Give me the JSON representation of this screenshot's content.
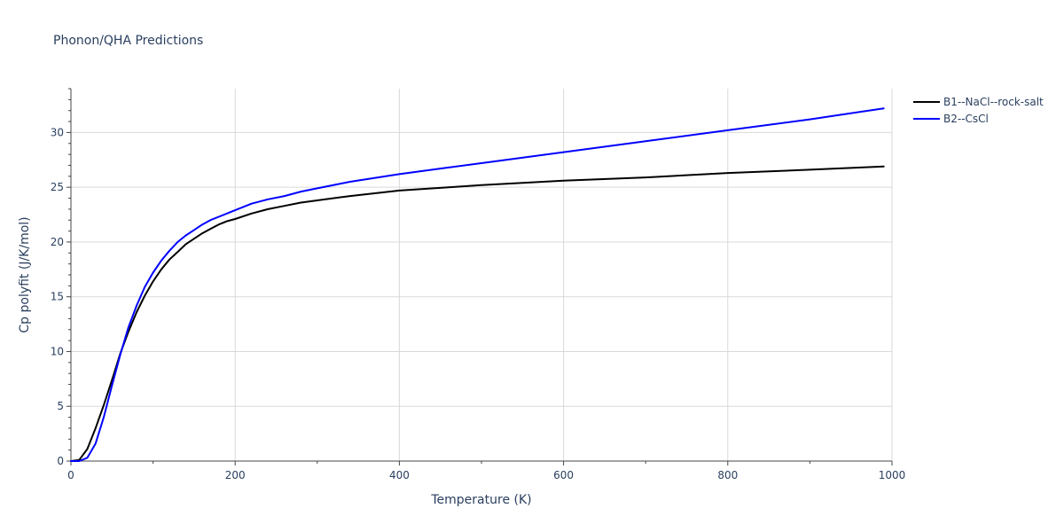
{
  "chart_data": {
    "type": "line",
    "title": "Phonon/QHA Predictions",
    "xlabel": "Temperature (K)",
    "ylabel": "Cp polyfit (J/K/mol)",
    "xlim": [
      0,
      1000
    ],
    "ylim": [
      0,
      34
    ],
    "xticks": [
      0,
      200,
      400,
      600,
      800,
      1000
    ],
    "yticks": [
      0,
      5,
      10,
      15,
      20,
      25,
      30
    ],
    "grid": true,
    "legend_position": "top-right",
    "series": [
      {
        "name": "B1--NaCl--rock-salt",
        "color": "#000000",
        "x": [
          0,
          10,
          20,
          30,
          40,
          50,
          60,
          70,
          80,
          90,
          100,
          110,
          120,
          130,
          140,
          150,
          160,
          170,
          180,
          190,
          200,
          220,
          240,
          260,
          280,
          300,
          340,
          400,
          460,
          500,
          600,
          700,
          800,
          900,
          990
        ],
        "y": [
          0,
          0.1,
          1.1,
          3.0,
          5.1,
          7.4,
          9.8,
          11.8,
          13.6,
          15.1,
          16.4,
          17.5,
          18.4,
          19.1,
          19.8,
          20.3,
          20.8,
          21.2,
          21.6,
          21.9,
          22.1,
          22.6,
          23.0,
          23.3,
          23.6,
          23.8,
          24.2,
          24.7,
          25.0,
          25.2,
          25.6,
          25.9,
          26.3,
          26.6,
          26.9
        ]
      },
      {
        "name": "B2--CsCl",
        "color": "#0000ff",
        "x": [
          0,
          10,
          20,
          30,
          40,
          50,
          60,
          70,
          80,
          90,
          100,
          110,
          120,
          130,
          140,
          150,
          160,
          170,
          180,
          190,
          200,
          220,
          240,
          260,
          280,
          300,
          340,
          400,
          460,
          500,
          600,
          700,
          800,
          900,
          990
        ],
        "y": [
          0,
          0,
          0.3,
          1.6,
          4.0,
          6.9,
          9.7,
          12.2,
          14.2,
          15.9,
          17.2,
          18.3,
          19.2,
          20.0,
          20.6,
          21.1,
          21.6,
          22.0,
          22.3,
          22.6,
          22.9,
          23.5,
          23.9,
          24.2,
          24.6,
          24.9,
          25.5,
          26.2,
          26.8,
          27.2,
          28.2,
          29.2,
          30.2,
          31.2,
          32.2
        ]
      }
    ]
  }
}
